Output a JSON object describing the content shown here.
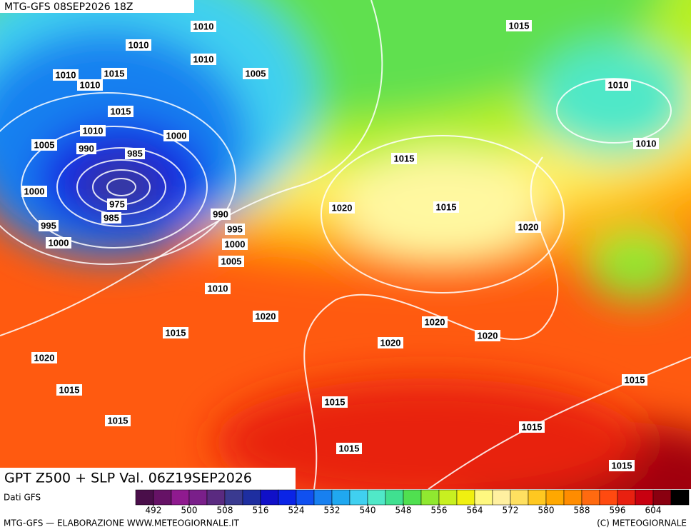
{
  "header": {
    "run": "MTG-GFS 08SEP2026 18Z",
    "title": "GPT Z500 + SLP Val. 06Z19SEP2026"
  },
  "isobar_labels": [
    "1010",
    "1010",
    "1010",
    "1015",
    "1010",
    "1015",
    "1005",
    "1010",
    "1015",
    "1010",
    "1010",
    "1000",
    "1005",
    "990",
    "985",
    "1010",
    "1015",
    "1000",
    "975",
    "985",
    "990",
    "1015",
    "1020",
    "995",
    "995",
    "1020",
    "1000",
    "1000",
    "1005",
    "1010",
    "1020",
    "1020",
    "1015",
    "1020",
    "1020",
    "1020",
    "1015",
    "1015",
    "1015",
    "1015",
    "1015",
    "1015",
    "1015"
  ],
  "colorbar": {
    "source": "Dati GFS",
    "ticks": [
      492,
      500,
      508,
      516,
      524,
      532,
      540,
      548,
      556,
      564,
      572,
      580,
      588,
      596,
      604
    ],
    "colors": [
      "#4a0e4a",
      "#661266",
      "#8f1a8f",
      "#7a1f8a",
      "#5a2a80",
      "#3a3a90",
      "#1e2ea0",
      "#1010c8",
      "#0a24e6",
      "#1050f0",
      "#1880f0",
      "#20a8f0",
      "#40d0f0",
      "#50e8c8",
      "#40e090",
      "#50e050",
      "#90e830",
      "#c8f020",
      "#f0f010",
      "#fff880",
      "#fff0a0",
      "#ffe060",
      "#ffc820",
      "#ffa800",
      "#ff8c00",
      "#ff6a10",
      "#ff4a10",
      "#e82010",
      "#c80010",
      "#8a0010",
      "#000000"
    ]
  },
  "footer": {
    "left": "MTG-GFS — ELABORAZIONE WWW.METEOGIORNALE.IT",
    "right": "(C) METEOGIORNALE"
  }
}
